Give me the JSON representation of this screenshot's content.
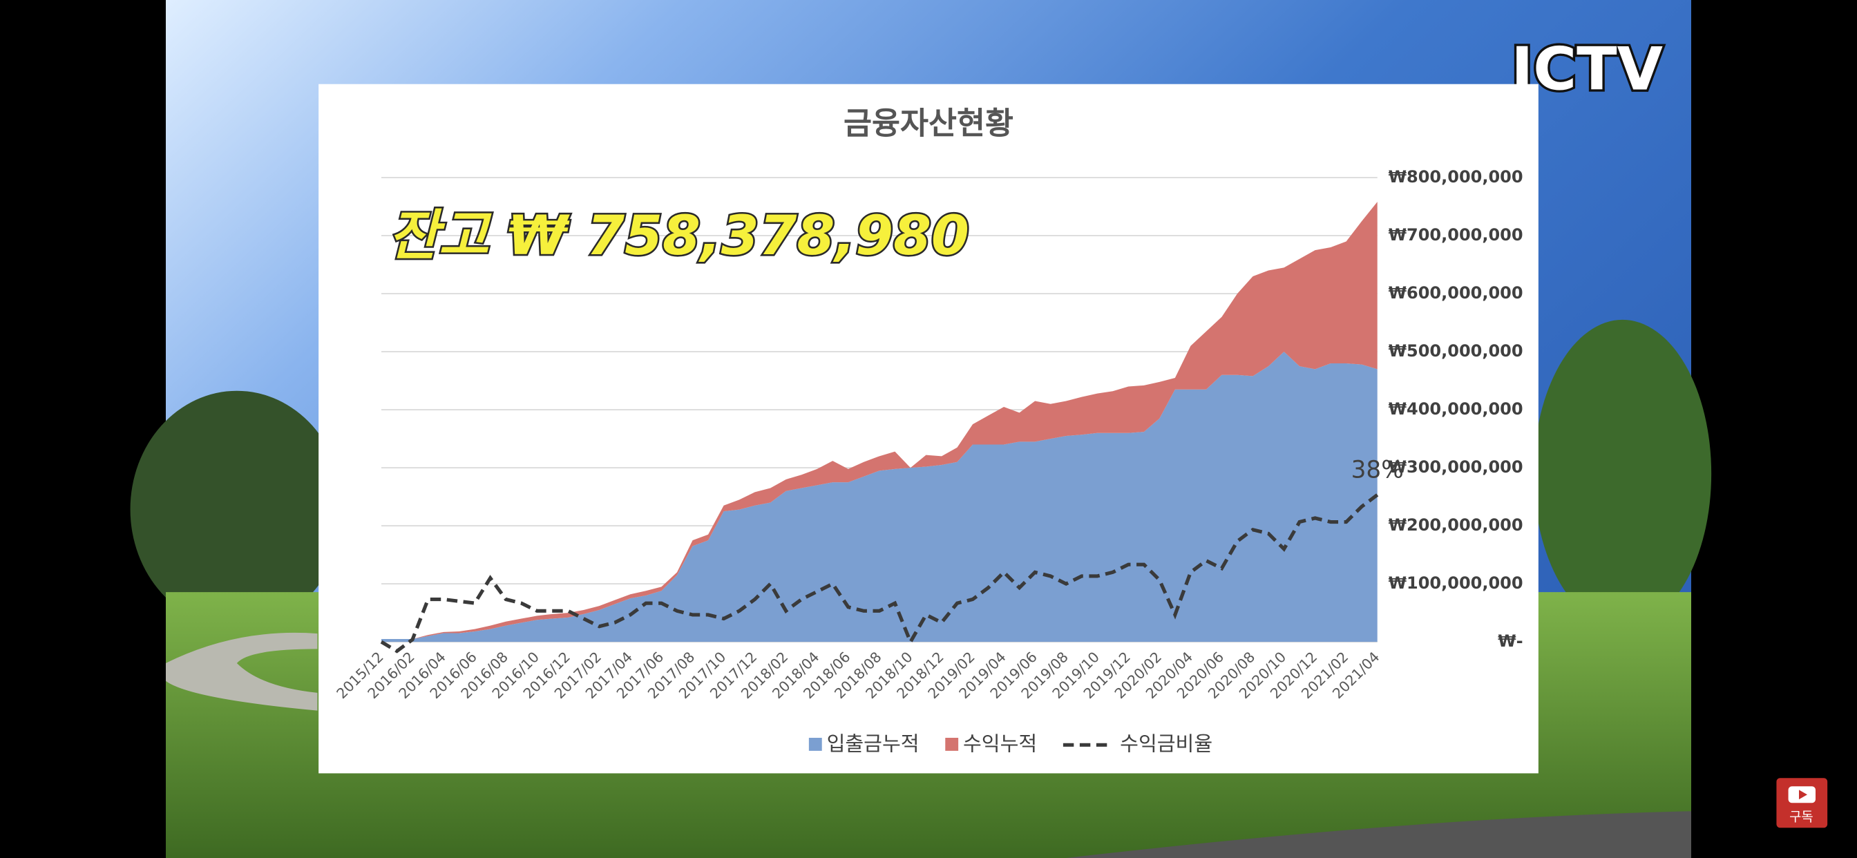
{
  "overlay": {
    "logo": "JCTV",
    "subscribe": "구독"
  },
  "chart_data": {
    "type": "area",
    "title": "금융자산현황",
    "annotations": [
      "잔고 ₩ 758,378,980",
      "38%"
    ],
    "categories": [
      "2015/12",
      null,
      "2016/02",
      null,
      "2016/04",
      null,
      "2016/06",
      null,
      "2016/08",
      null,
      "2016/10",
      null,
      "2016/12",
      null,
      "2017/02",
      null,
      "2017/04",
      null,
      "2017/06",
      null,
      "2017/08",
      null,
      "2017/10",
      null,
      "2017/12",
      null,
      "2018/02",
      null,
      "2018/04",
      null,
      "2018/06",
      null,
      "2018/08",
      null,
      "2018/10",
      null,
      "2018/12",
      null,
      "2019/02",
      null,
      "2019/04",
      null,
      "2019/06",
      null,
      "2019/08",
      null,
      "2019/10",
      null,
      "2019/12",
      null,
      "2020/02",
      null,
      "2020/04",
      null,
      "2020/06",
      null,
      "2020/08",
      null,
      "2020/10",
      null,
      "2020/12",
      null,
      "2021/02",
      null,
      "2021/04"
    ],
    "series": [
      {
        "name": "입출금누적",
        "color": "#7b9fd1",
        "values": [
          5000000,
          5000000,
          5000000,
          10000000,
          15000000,
          15000000,
          18000000,
          22000000,
          28000000,
          33000000,
          38000000,
          40000000,
          42000000,
          48000000,
          55000000,
          65000000,
          75000000,
          80000000,
          88000000,
          115000000,
          165000000,
          175000000,
          225000000,
          228000000,
          235000000,
          240000000,
          260000000,
          265000000,
          270000000,
          275000000,
          275000000,
          285000000,
          295000000,
          298000000,
          300000000,
          302000000,
          305000000,
          310000000,
          340000000,
          340000000,
          340000000,
          345000000,
          345000000,
          350000000,
          355000000,
          357000000,
          360000000,
          360000000,
          360000000,
          362000000,
          385000000,
          435000000,
          435000000,
          435000000,
          460000000,
          460000000,
          458000000,
          475000000,
          500000000,
          475000000,
          470000000,
          480000000,
          480000000,
          478000000,
          470000000
        ]
      },
      {
        "name": "수익누적",
        "color": "#d4746f",
        "values": [
          0,
          0,
          0,
          2000000,
          2000000,
          3000000,
          4000000,
          6000000,
          7000000,
          7000000,
          7000000,
          8000000,
          8000000,
          7000000,
          7000000,
          7000000,
          7000000,
          8000000,
          7000000,
          5000000,
          10000000,
          10000000,
          10000000,
          17000000,
          23000000,
          25000000,
          20000000,
          23000000,
          28000000,
          37000000,
          23000000,
          25000000,
          25000000,
          30000000,
          0,
          20000000,
          15000000,
          25000000,
          35000000,
          50000000,
          65000000,
          50000000,
          70000000,
          60000000,
          60000000,
          65000000,
          68000000,
          72000000,
          80000000,
          80000000,
          63000000,
          20000000,
          75000000,
          100000000,
          100000000,
          140000000,
          172000000,
          165000000,
          145000000,
          185000000,
          205000000,
          200000000,
          210000000,
          247000000,
          288378980
        ]
      },
      {
        "name": "수익금비율",
        "color": "#3a3a3a",
        "type": "line",
        "dash": true,
        "axis": "y2",
        "values": [
          0,
          -2.4,
          0.6,
          11,
          11,
          10.5,
          10,
          16.5,
          11,
          10,
          8,
          8,
          8,
          6,
          4,
          5,
          7,
          10,
          10,
          8,
          7,
          7,
          6,
          8,
          11,
          15,
          8,
          11,
          13,
          15,
          9,
          8,
          8,
          10,
          0,
          7,
          5,
          10,
          11,
          14,
          18,
          14,
          18,
          17,
          15,
          17,
          17,
          18,
          20,
          20,
          16,
          7,
          18,
          21,
          19,
          26,
          29,
          28,
          24,
          31,
          32,
          31,
          31,
          35,
          38
        ]
      }
    ],
    "ylim": [
      0,
      800000000
    ],
    "yticks": [
      {
        "value": 0,
        "label": "₩-"
      },
      {
        "value": 100000000,
        "label": "₩100,000,000"
      },
      {
        "value": 200000000,
        "label": "₩200,000,000"
      },
      {
        "value": 300000000,
        "label": "₩300,000,000"
      },
      {
        "value": 400000000,
        "label": "₩400,000,000"
      },
      {
        "value": 500000000,
        "label": "₩500,000,000"
      },
      {
        "value": 600000000,
        "label": "₩600,000,000"
      },
      {
        "value": 700000000,
        "label": "₩700,000,000"
      },
      {
        "value": 800000000,
        "label": "₩800,000,000"
      }
    ],
    "y2lim": [
      0,
      120
    ],
    "grid": true,
    "legend": "bottom"
  }
}
